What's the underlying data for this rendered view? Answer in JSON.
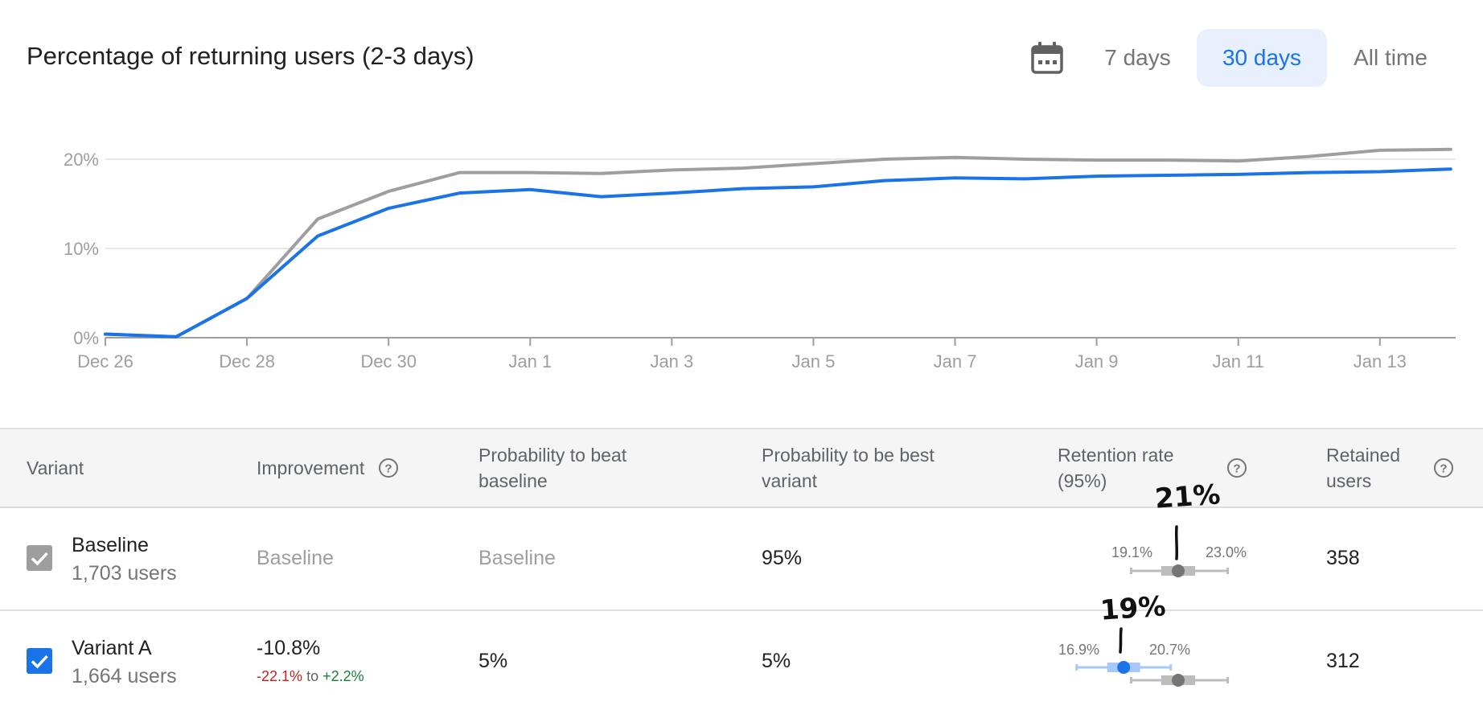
{
  "header": {
    "title": "Percentage of returning users (2-3 days)",
    "calendar_icon": "calendar-icon",
    "ranges": [
      "7 days",
      "30 days",
      "All time"
    ],
    "active_range": "30 days"
  },
  "chart_data": {
    "type": "line",
    "title": "",
    "xlabel": "",
    "ylabel": "",
    "ylim": [
      0,
      20
    ],
    "y_ticks": [
      "0%",
      "10%",
      "20%"
    ],
    "x_tick_labels": [
      "Dec 26",
      "Dec 28",
      "Dec 30",
      "Jan 1",
      "Jan 3",
      "Jan 5",
      "Jan 7",
      "Jan 9",
      "Jan 11",
      "Jan 13"
    ],
    "x": [
      "Dec 26",
      "Dec 27",
      "Dec 28",
      "Dec 29",
      "Dec 30",
      "Dec 31",
      "Jan 1",
      "Jan 2",
      "Jan 3",
      "Jan 4",
      "Jan 5",
      "Jan 6",
      "Jan 7",
      "Jan 8",
      "Jan 9",
      "Jan 10",
      "Jan 11",
      "Jan 12",
      "Jan 13",
      "Jan 14"
    ],
    "grid": true,
    "series": [
      {
        "color": "#9e9e9e",
        "values": [
          0.4,
          0.1,
          4.4,
          13.3,
          16.4,
          18.5,
          18.5,
          18.4,
          18.8,
          19.0,
          19.5,
          20.0,
          20.2,
          20.0,
          19.9,
          19.9,
          19.8,
          20.3,
          21.0,
          21.1
        ]
      },
      {
        "color": "#1a73e8",
        "values": [
          0.4,
          0.1,
          4.4,
          11.4,
          14.5,
          16.2,
          16.6,
          15.8,
          16.2,
          16.7,
          16.9,
          17.6,
          17.9,
          17.8,
          18.1,
          18.2,
          18.3,
          18.5,
          18.6,
          18.9
        ]
      }
    ]
  },
  "table": {
    "headers": {
      "variant": "Variant",
      "improvement": "Improvement",
      "prob_beat_line1": "Probability to beat",
      "prob_beat_line2": "baseline",
      "prob_best_line1": "Probability to be best",
      "prob_best_line2": "variant",
      "retention_line1": "Retention rate",
      "retention_line2": "(95%)",
      "retained_line1": "Retained",
      "retained_line2": "users"
    },
    "rows": [
      {
        "name": "Baseline",
        "users": "1,703 users",
        "checked": true,
        "checkbox_color": "#9e9e9e",
        "improvement": "Baseline",
        "prob_beat": "Baseline",
        "prob_best": "95%",
        "ci_low": "19.1%",
        "ci_high": "23.0%",
        "ci_low_value": 19.1,
        "ci_high_value": 23.0,
        "point_value": 21.0,
        "annotation": "21%",
        "retained": "358"
      },
      {
        "name": "Variant A",
        "users": "1,664 users",
        "checked": true,
        "checkbox_color": "#1a73e8",
        "improvement": "-10.8%",
        "improvement_low": "-22.1%",
        "improvement_to": "to",
        "improvement_high": "+2.2%",
        "prob_beat": "5%",
        "prob_best": "5%",
        "ci_low": "16.9%",
        "ci_high": "20.7%",
        "ci_low_value": 16.9,
        "ci_high_value": 20.7,
        "point_value": 18.8,
        "annotation": "19%",
        "retained": "312"
      }
    ]
  }
}
